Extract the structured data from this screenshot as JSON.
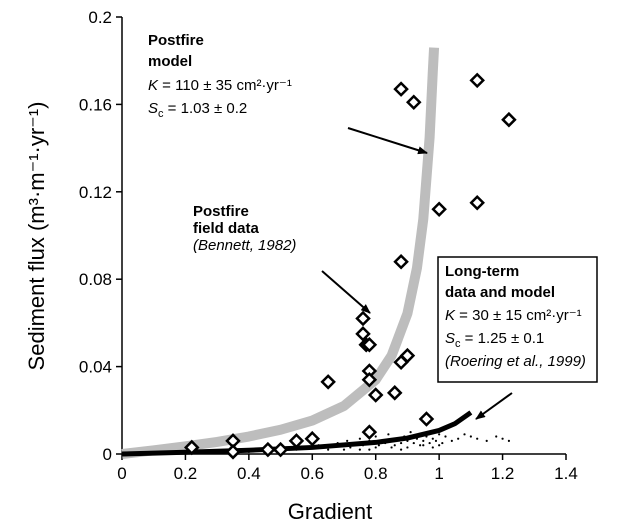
{
  "chart_data": {
    "type": "scatter",
    "x_label": "Gradient",
    "y_label": "Sediment flux (m³·m⁻¹·yr⁻¹)",
    "xlim": [
      0,
      1.4
    ],
    "xticks": [
      0,
      0.2,
      0.4,
      0.6,
      0.8,
      1,
      1.2,
      1.4
    ],
    "ylim": [
      0,
      0.2
    ],
    "yticks": [
      0,
      0.04,
      0.08,
      0.12,
      0.16,
      0.2
    ],
    "series": [
      {
        "mark": "dot",
        "color": "#000000",
        "x": [
          0.36,
          0.4,
          0.42,
          0.45,
          0.48,
          0.5,
          0.52,
          0.55,
          0.57,
          0.6,
          0.62,
          0.64,
          0.66,
          0.68,
          0.7,
          0.71,
          0.72,
          0.74,
          0.75,
          0.76,
          0.78,
          0.79,
          0.8,
          0.81,
          0.82,
          0.83,
          0.84,
          0.85,
          0.86,
          0.87,
          0.88,
          0.89,
          0.9,
          0.91,
          0.92,
          0.93,
          0.94,
          0.95,
          0.96,
          0.97,
          0.98,
          0.99,
          1.0,
          1.01,
          1.02,
          1.04,
          1.06,
          1.08,
          1.1,
          1.12,
          1.15,
          1.18,
          1.2,
          1.22,
          0.7,
          0.75,
          0.8,
          0.85,
          0.9,
          0.95,
          1.0,
          0.65,
          0.78,
          0.88,
          0.98
        ],
        "values": [
          0.001,
          0.001,
          0.002,
          0.001,
          0.002,
          0.002,
          0.003,
          0.002,
          0.003,
          0.003,
          0.004,
          0.003,
          0.004,
          0.005,
          0.004,
          0.006,
          0.003,
          0.005,
          0.007,
          0.004,
          0.006,
          0.005,
          0.008,
          0.004,
          0.006,
          0.005,
          0.009,
          0.006,
          0.004,
          0.007,
          0.005,
          0.008,
          0.006,
          0.01,
          0.005,
          0.007,
          0.004,
          0.006,
          0.008,
          0.005,
          0.007,
          0.006,
          0.009,
          0.005,
          0.008,
          0.006,
          0.007,
          0.009,
          0.008,
          0.007,
          0.006,
          0.008,
          0.007,
          0.006,
          0.002,
          0.002,
          0.003,
          0.003,
          0.003,
          0.004,
          0.004,
          0.002,
          0.002,
          0.002,
          0.003
        ]
      },
      {
        "mark": "line",
        "color": "#bdbdbd",
        "width": 10,
        "x": [
          0,
          0.1,
          0.2,
          0.3,
          0.4,
          0.5,
          0.6,
          0.7,
          0.8,
          0.85,
          0.9,
          0.93,
          0.95,
          0.97,
          0.98,
          0.984
        ],
        "values": [
          0,
          0.0017,
          0.0035,
          0.0055,
          0.008,
          0.0111,
          0.0153,
          0.022,
          0.034,
          0.045,
          0.0643,
          0.0851,
          0.1075,
          0.145,
          0.175,
          0.186
        ]
      },
      {
        "mark": "line",
        "color": "#000000",
        "width": 5,
        "x": [
          0,
          0.2,
          0.4,
          0.6,
          0.8,
          0.9,
          1.0,
          1.05,
          1.1
        ],
        "values": [
          0,
          0.0008,
          0.0017,
          0.003,
          0.0053,
          0.0073,
          0.0108,
          0.0139,
          0.019
        ]
      },
      {
        "mark": "diamond",
        "color": "#000000",
        "x": [
          0.22,
          0.35,
          0.35,
          0.46,
          0.5,
          0.55,
          0.6,
          0.65,
          0.76,
          0.76,
          0.77,
          0.78,
          0.78,
          0.78,
          0.8,
          0.78,
          0.86,
          0.88,
          0.9,
          0.88,
          0.88,
          0.92,
          1.0,
          0.96,
          1.12,
          1.12,
          1.22
        ],
        "values": [
          0.003,
          0.006,
          0.001,
          0.002,
          0.002,
          0.006,
          0.007,
          0.033,
          0.062,
          0.055,
          0.05,
          0.05,
          0.038,
          0.034,
          0.027,
          0.01,
          0.028,
          0.042,
          0.045,
          0.088,
          0.167,
          0.161,
          0.112,
          0.016,
          0.171,
          0.115,
          0.153
        ]
      }
    ],
    "annotations": [
      {
        "title": [
          "Postfire",
          "model"
        ],
        "k": {
          "symbol": "K",
          "text": " = 110 ± 35 cm²·yr⁻¹"
        },
        "sc": {
          "symbol": "S",
          "sub": "c",
          "text": " = 1.03 ± 0.2"
        }
      },
      {
        "title": [
          "Postfire",
          "field data"
        ],
        "source": "(Bennett, 1982)"
      },
      {
        "title": [
          "Long-term",
          "data and model"
        ],
        "k": {
          "symbol": "K",
          "text": " = 30 ± 15 cm²·yr⁻¹"
        },
        "sc": {
          "symbol": "S",
          "sub": "c",
          "text": " = 1.25 ± 0.1"
        },
        "source": "(Roering et al., 1999)"
      }
    ]
  }
}
